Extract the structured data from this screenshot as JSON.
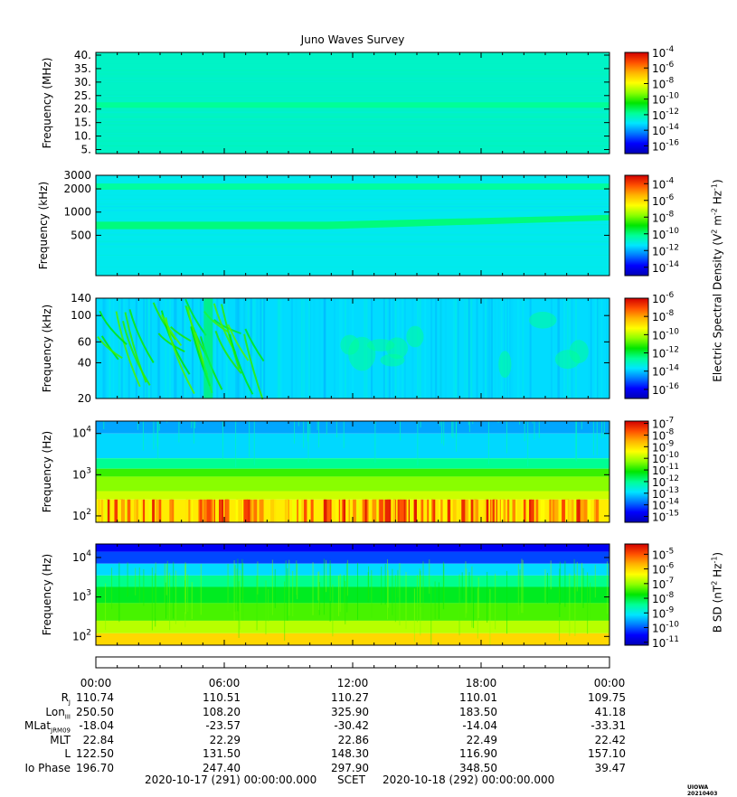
{
  "title": "Juno Waves Survey",
  "stamp": "UIOWA 20210403",
  "colors": {
    "colormap": [
      "#0000b4",
      "#0000ff",
      "#0078ff",
      "#00e6ff",
      "#00ff96",
      "#00e600",
      "#8cff00",
      "#ffff00",
      "#ffb400",
      "#ff5000",
      "#d20000"
    ]
  },
  "chart_data": [
    {
      "type": "heatmap",
      "panel": 1,
      "ylabel": "Frequency (MHz)",
      "yscale": "linear",
      "ylim": [
        3.5,
        41
      ],
      "yticks": [
        {
          "v": 40,
          "t": "40."
        },
        {
          "v": 35,
          "t": "35."
        },
        {
          "v": 30,
          "t": "30."
        },
        {
          "v": 25,
          "t": "25."
        },
        {
          "v": 20,
          "t": "20."
        },
        {
          "v": 15,
          "t": "15."
        },
        {
          "v": 10,
          "t": "10."
        },
        {
          "v": 5,
          "t": "5."
        }
      ],
      "colorbar_ticks": [
        {
          "t": "10",
          "e": "-4"
        },
        {
          "t": "10",
          "e": "-6"
        },
        {
          "t": "10",
          "e": "-8"
        },
        {
          "t": "10",
          "e": "-10"
        },
        {
          "t": "10",
          "e": "-12"
        },
        {
          "t": "10",
          "e": "-14"
        },
        {
          "t": "10",
          "e": "-16"
        }
      ],
      "cb_level_range": [
        -17,
        -4
      ],
      "background_level": -12.4,
      "bands": [
        {
          "from": 20.5,
          "to": 22.5,
          "level": -11.8
        }
      ]
    },
    {
      "type": "heatmap",
      "panel": 2,
      "ylabel": "Frequency (kHz)",
      "yscale": "log",
      "ylim": [
        150,
        3000
      ],
      "yticks": [
        {
          "v": 3000,
          "t": "3000"
        },
        {
          "v": 2000,
          "t": "2000"
        },
        {
          "v": 1000,
          "t": "1000"
        },
        {
          "v": 500,
          "t": "500"
        }
      ],
      "colorbar_ticks": [
        {
          "t": "10",
          "e": "-4"
        },
        {
          "t": "10",
          "e": "-6"
        },
        {
          "t": "10",
          "e": "-8"
        },
        {
          "t": "10",
          "e": "-10"
        },
        {
          "t": "10",
          "e": "-12"
        },
        {
          "t": "10",
          "e": "-14"
        }
      ],
      "cb_level_range": [
        -15,
        -3
      ],
      "background_level": -11.2,
      "bands": [
        {
          "from": 1950,
          "to": 2350,
          "level": -10.3
        },
        {
          "from": 600,
          "to": 750,
          "level": -10.0,
          "rising_to": [
            780,
            920
          ]
        }
      ]
    },
    {
      "type": "heatmap",
      "panel": 3,
      "ylabel": "Frequency (kHz)",
      "yscale": "log",
      "ylim": [
        20,
        140
      ],
      "yticks": [
        {
          "v": 140,
          "t": "140"
        },
        {
          "v": 100,
          "t": "100"
        },
        {
          "v": 60,
          "t": "60"
        },
        {
          "v": 40,
          "t": "40"
        },
        {
          "v": 20,
          "t": "20"
        }
      ],
      "colorbar_ticks": [
        {
          "t": "10",
          "e": "-6"
        },
        {
          "t": "10",
          "e": "-8"
        },
        {
          "t": "10",
          "e": "-10"
        },
        {
          "t": "10",
          "e": "-12"
        },
        {
          "t": "10",
          "e": "-14"
        },
        {
          "t": "10",
          "e": "-16"
        }
      ],
      "cb_level_range": [
        -17,
        -6
      ],
      "background_level": -13.8,
      "bursts": "whistler-like emissions between 00:00 and 07:00"
    },
    {
      "type": "heatmap",
      "panel": 4,
      "ylabel": "Frequency (Hz)",
      "yscale": "log",
      "ylim": [
        70,
        20000
      ],
      "yticks": [
        {
          "v": 10000,
          "t": "10",
          "e": "4"
        },
        {
          "v": 1000,
          "t": "10",
          "e": "3"
        },
        {
          "v": 100,
          "t": "10",
          "e": "2"
        }
      ],
      "colorbar_ticks": [
        {
          "t": "10",
          "e": "-7"
        },
        {
          "t": "10",
          "e": "-8"
        },
        {
          "t": "10",
          "e": "-9"
        },
        {
          "t": "10",
          "e": "-10"
        },
        {
          "t": "10",
          "e": "-11"
        },
        {
          "t": "10",
          "e": "-12"
        },
        {
          "t": "10",
          "e": "-13"
        },
        {
          "t": "10",
          "e": "-14"
        },
        {
          "t": "10",
          "e": "-15"
        }
      ],
      "cb_level_range": [
        -15.5,
        -6.8
      ]
    },
    {
      "type": "heatmap",
      "panel": 5,
      "ylabel": "Frequency (Hz)",
      "yscale": "log",
      "ylim": [
        60,
        22000
      ],
      "yticks": [
        {
          "v": 10000,
          "t": "10",
          "e": "4"
        },
        {
          "v": 1000,
          "t": "10",
          "e": "3"
        },
        {
          "v": 100,
          "t": "10",
          "e": "2"
        }
      ],
      "colorbar_ticks": [
        {
          "t": "10",
          "e": "-5"
        },
        {
          "t": "10",
          "e": "-6"
        },
        {
          "t": "10",
          "e": "-7"
        },
        {
          "t": "10",
          "e": "-8"
        },
        {
          "t": "10",
          "e": "-9"
        },
        {
          "t": "10",
          "e": "-10"
        },
        {
          "t": "10",
          "e": "-11"
        }
      ],
      "cb_level_range": [
        -11.2,
        -4.3
      ]
    }
  ],
  "colorbar_labels": {
    "electric_pre": "Electric Spectral Density (V",
    "electric_sup1": "2",
    "electric_mid": " m",
    "electric_sup2": "-2",
    "electric_mid2": " Hz",
    "electric_sup3": "-1",
    "electric_post": ")",
    "magnetic_pre": "B SD (nT",
    "magnetic_sup1": "2",
    "magnetic_mid": " Hz",
    "magnetic_sup2": "-1",
    "magnetic_post": ")"
  },
  "time_axis": {
    "ticks": [
      "00:00",
      "06:00",
      "12:00",
      "18:00",
      "00:00"
    ],
    "hours_span": 24,
    "minor_per_major": 6
  },
  "ephemeris": [
    {
      "label": "R",
      "sub": "J",
      "values": [
        "110.74",
        "110.51",
        "110.27",
        "110.01",
        "109.75"
      ]
    },
    {
      "label": "Lon",
      "sub": "III",
      "values": [
        "250.50",
        "108.20",
        "325.90",
        "183.50",
        "41.18"
      ]
    },
    {
      "label": "MLat",
      "sub": "JRM09",
      "values": [
        "-18.04",
        "-23.57",
        "-30.42",
        "-14.04",
        "-33.31"
      ]
    },
    {
      "label": "MLT",
      "sub": "",
      "values": [
        "22.84",
        "22.29",
        "22.86",
        "22.49",
        "22.42"
      ]
    },
    {
      "label": "L",
      "sub": "",
      "values": [
        "122.50",
        "131.50",
        "148.30",
        "116.90",
        "157.10"
      ]
    },
    {
      "label": "Io Phase",
      "sub": "",
      "values": [
        "196.70",
        "247.40",
        "297.90",
        "348.50",
        "39.47"
      ]
    }
  ],
  "footer": {
    "start": "2020-10-17 (291) 00:00:00.000",
    "scet": "SCET",
    "end": "2020-10-18 (292) 00:00:00.000"
  }
}
